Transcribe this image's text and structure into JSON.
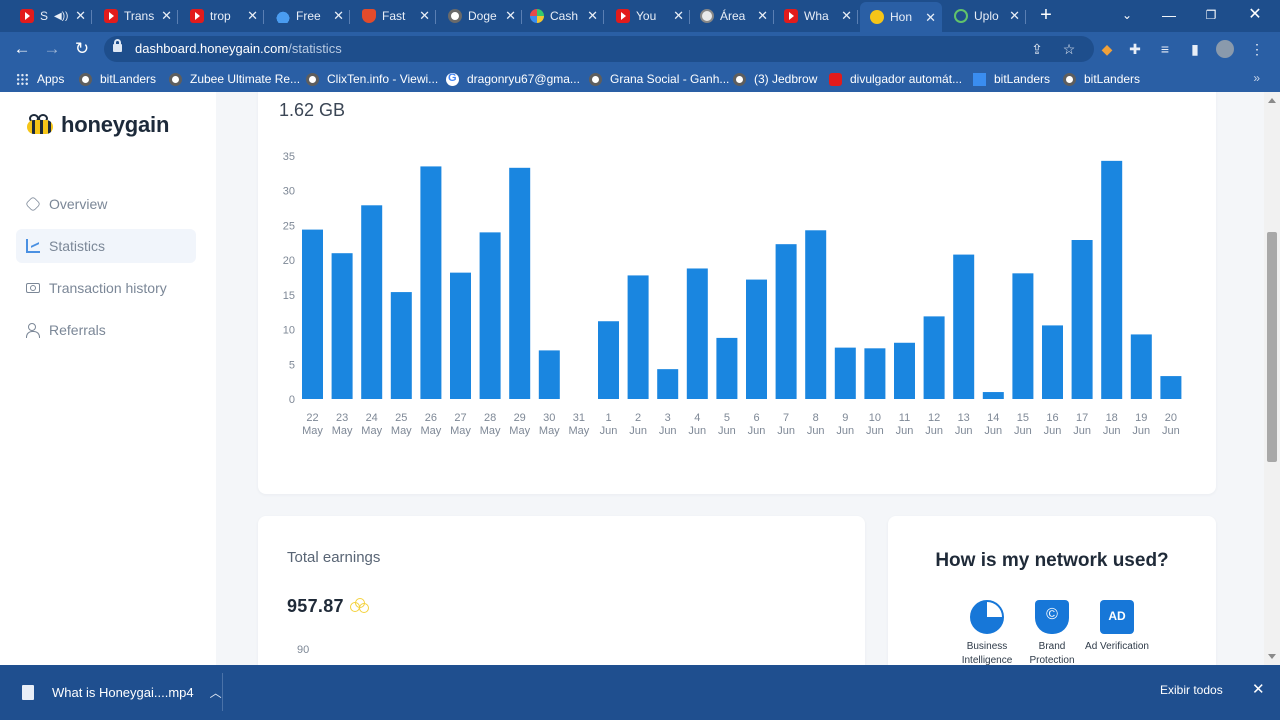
{
  "browser": {
    "tabs": [
      {
        "title": "S",
        "favicon": "youtube-icon",
        "muted": true
      },
      {
        "title": "Trans",
        "favicon": "youtube-icon"
      },
      {
        "title": "trop",
        "favicon": "youtube-icon"
      },
      {
        "title": "Free",
        "favicon": "drop-icon"
      },
      {
        "title": "Fast",
        "favicon": "brave-icon"
      },
      {
        "title": "Doge",
        "favicon": "globe-icon"
      },
      {
        "title": "Cash",
        "favicon": "pinwheel-icon"
      },
      {
        "title": "You",
        "favicon": "youtube-icon"
      },
      {
        "title": "Área",
        "favicon": "coin-icon"
      },
      {
        "title": "Wha",
        "favicon": "youtube-icon"
      },
      {
        "title": "Hon",
        "favicon": "honeygain-icon",
        "active": true
      },
      {
        "title": "Uplo",
        "favicon": "play-icon"
      }
    ],
    "url_host": "dashboard.honeygain.com",
    "url_path": "/statistics",
    "bookmarks": [
      {
        "label": "Apps",
        "icon": "apps-grid-icon"
      },
      {
        "label": "bitLanders",
        "icon": "globe-icon"
      },
      {
        "label": "Zubee Ultimate Re...",
        "icon": "globe-icon"
      },
      {
        "label": "ClixTen.info - Viewi...",
        "icon": "globe-icon"
      },
      {
        "label": "dragonryu67@gma...",
        "icon": "google-icon"
      },
      {
        "label": "Grana Social - Ganh...",
        "icon": "globe-icon"
      },
      {
        "label": "(3) Jedbrow",
        "icon": "globe-icon"
      },
      {
        "label": "divulgador automát...",
        "icon": "youtube-icon"
      },
      {
        "label": "bitLanders",
        "icon": "bookmark-blue-icon"
      },
      {
        "label": "bitLanders",
        "icon": "globe-icon"
      }
    ]
  },
  "sidebar": {
    "logo_text": "honeygain",
    "items": [
      {
        "label": "Overview",
        "icon": "hexagon-icon"
      },
      {
        "label": "Statistics",
        "icon": "chart-icon",
        "active": true
      },
      {
        "label": "Transaction history",
        "icon": "cash-icon"
      },
      {
        "label": "Referrals",
        "icon": "users-icon"
      }
    ]
  },
  "traffic": {
    "total": "1.62 GB"
  },
  "chart_data": {
    "type": "bar",
    "title": "",
    "xlabel": "",
    "ylabel": "",
    "ylim": [
      0,
      35
    ],
    "yticks": [
      0,
      5,
      10,
      15,
      20,
      25,
      30,
      35
    ],
    "grid": false,
    "bar_color": "#1a86e0",
    "categories": [
      [
        "22",
        "May"
      ],
      [
        "23",
        "May"
      ],
      [
        "24",
        "May"
      ],
      [
        "25",
        "May"
      ],
      [
        "26",
        "May"
      ],
      [
        "27",
        "May"
      ],
      [
        "28",
        "May"
      ],
      [
        "29",
        "May"
      ],
      [
        "30",
        "May"
      ],
      [
        "31",
        "May"
      ],
      [
        "1",
        "Jun"
      ],
      [
        "2",
        "Jun"
      ],
      [
        "3",
        "Jun"
      ],
      [
        "4",
        "Jun"
      ],
      [
        "5",
        "Jun"
      ],
      [
        "6",
        "Jun"
      ],
      [
        "7",
        "Jun"
      ],
      [
        "8",
        "Jun"
      ],
      [
        "9",
        "Jun"
      ],
      [
        "10",
        "Jun"
      ],
      [
        "11",
        "Jun"
      ],
      [
        "12",
        "Jun"
      ],
      [
        "13",
        "Jun"
      ],
      [
        "14",
        "Jun"
      ],
      [
        "15",
        "Jun"
      ],
      [
        "16",
        "Jun"
      ],
      [
        "17",
        "Jun"
      ],
      [
        "18",
        "Jun"
      ],
      [
        "19",
        "Jun"
      ],
      [
        "20",
        "Jun"
      ]
    ],
    "values": [
      24.4,
      21,
      27.9,
      15.4,
      33.5,
      18.2,
      24,
      33.3,
      7,
      0,
      11.2,
      17.8,
      4.3,
      18.8,
      8.8,
      17.2,
      22.3,
      24.3,
      7.4,
      7.3,
      8.1,
      11.9,
      20.8,
      1,
      18.1,
      10.6,
      22.9,
      34.3,
      9.3,
      3.3
    ]
  },
  "earnings": {
    "title": "Total earnings",
    "value": "957.87",
    "axis_tick": "90"
  },
  "network": {
    "title": "How is my network used?",
    "items": [
      {
        "label": "Business Intelligence",
        "icon": "pie-chart-icon"
      },
      {
        "label": "Brand Protection",
        "icon": "shield-icon"
      },
      {
        "label": "Ad Verification",
        "icon": "ad-icon"
      }
    ]
  },
  "downloads": {
    "file": "What is Honeygai....mp4",
    "show_all": "Exibir todos"
  }
}
